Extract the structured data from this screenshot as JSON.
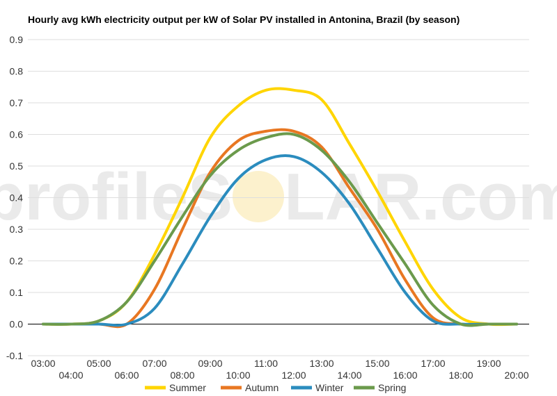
{
  "chart_data": {
    "type": "line",
    "title": "Hourly avg kWh electricity output per kW of Solar PV installed in Antonina, Brazil (by season)",
    "xlabel": "",
    "ylabel": "",
    "categories": [
      "03:00",
      "04:00",
      "05:00",
      "06:00",
      "07:00",
      "08:00",
      "09:00",
      "10:00",
      "11:00",
      "12:00",
      "13:00",
      "14:00",
      "15:00",
      "16:00",
      "17:00",
      "18:00",
      "19:00",
      "20:00"
    ],
    "ylim": [
      -0.1,
      0.9
    ],
    "yticks": [
      "0.9",
      "0.8",
      "0.7",
      "0.6",
      "0.5",
      "0.4",
      "0.3",
      "0.2",
      "0.1",
      "0.0",
      "-0.1"
    ],
    "grid": true,
    "legend_position": "bottom",
    "series": [
      {
        "name": "Summer",
        "color": "#FFD500",
        "values": [
          0.0,
          0.0,
          0.01,
          0.07,
          0.22,
          0.4,
          0.59,
          0.69,
          0.74,
          0.74,
          0.71,
          0.57,
          0.42,
          0.26,
          0.11,
          0.02,
          0.0,
          0.0
        ]
      },
      {
        "name": "Autumn",
        "color": "#E87722",
        "values": [
          0.0,
          0.0,
          0.0,
          0.0,
          0.11,
          0.3,
          0.48,
          0.58,
          0.61,
          0.61,
          0.56,
          0.43,
          0.3,
          0.14,
          0.02,
          0.0,
          0.0,
          0.0
        ]
      },
      {
        "name": "Winter",
        "color": "#2B8CBE",
        "values": [
          0.0,
          0.0,
          0.0,
          0.0,
          0.05,
          0.19,
          0.34,
          0.46,
          0.52,
          0.53,
          0.48,
          0.38,
          0.24,
          0.1,
          0.01,
          0.0,
          0.0,
          0.0
        ]
      },
      {
        "name": "Spring",
        "color": "#6B9A4C",
        "values": [
          0.0,
          0.0,
          0.01,
          0.07,
          0.2,
          0.34,
          0.47,
          0.55,
          0.59,
          0.6,
          0.55,
          0.45,
          0.32,
          0.19,
          0.06,
          0.0,
          0.0,
          0.0
        ]
      }
    ]
  },
  "watermark": {
    "left": "profileS",
    "right": "LAR.com"
  }
}
